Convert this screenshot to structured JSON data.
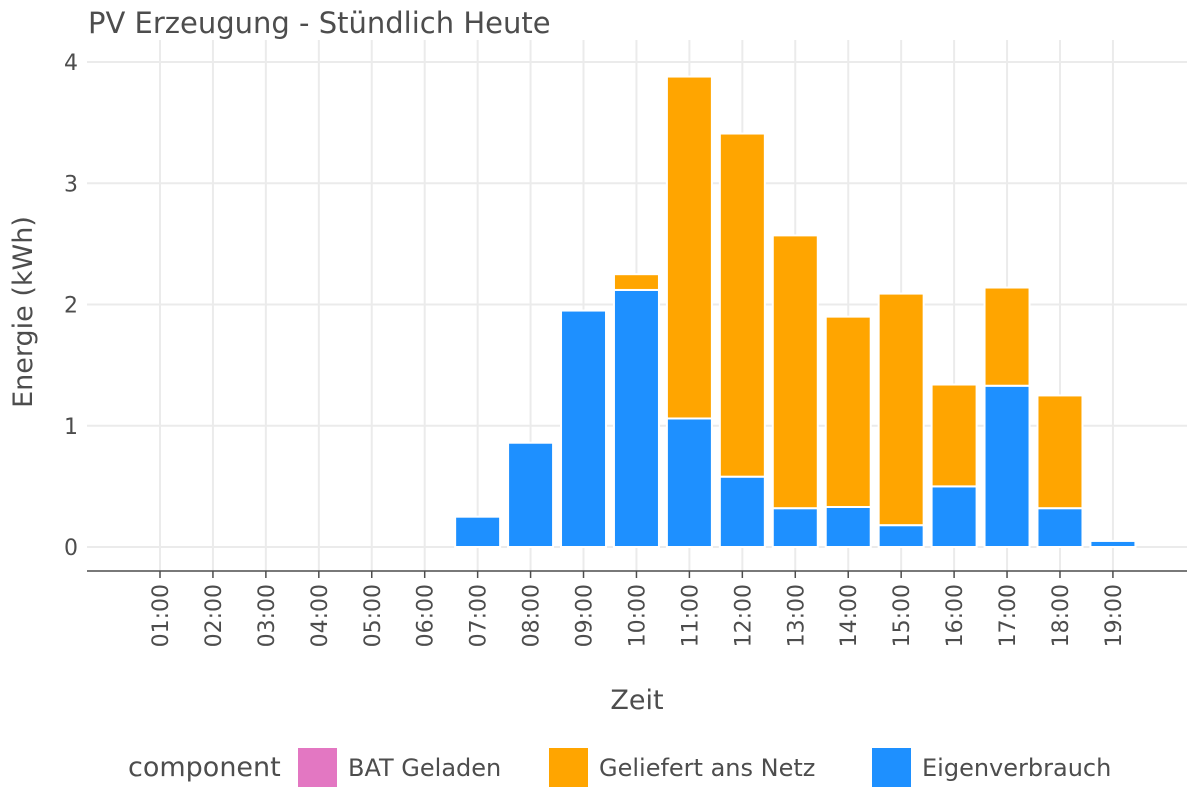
{
  "chart_data": {
    "type": "bar",
    "stacked": true,
    "title": "PV Erzeugung - Stündlich Heute",
    "xlabel": "Zeit",
    "ylabel": "Energie (kWh)",
    "ylim": [
      0,
      4
    ],
    "yticks": [
      "0",
      "1",
      "2",
      "3",
      "4"
    ],
    "grid": true,
    "legend_position": "bottom",
    "legend_title": "component",
    "categories": [
      "01:00",
      "02:00",
      "03:00",
      "04:00",
      "05:00",
      "06:00",
      "07:00",
      "08:00",
      "09:00",
      "10:00",
      "11:00",
      "12:00",
      "13:00",
      "14:00",
      "15:00",
      "16:00",
      "17:00",
      "18:00",
      "19:00"
    ],
    "series": [
      {
        "name": "Eigenverbrauch",
        "color": "#1E90FF",
        "values": [
          0,
          0,
          0,
          0,
          0,
          0,
          0.25,
          0.86,
          1.95,
          2.12,
          1.06,
          0.58,
          0.32,
          0.33,
          0.18,
          0.5,
          1.33,
          0.32,
          0.05
        ]
      },
      {
        "name": "Geliefert ans Netz",
        "color": "#FFA500",
        "values": [
          0,
          0,
          0,
          0,
          0,
          0,
          0,
          0,
          0,
          0.13,
          2.82,
          2.83,
          2.25,
          1.57,
          1.91,
          0.84,
          0.81,
          0.93,
          0
        ]
      },
      {
        "name": "BAT Geladen",
        "color": "#E377C2",
        "values": [
          0,
          0,
          0,
          0,
          0,
          0,
          0,
          0,
          0,
          0,
          0,
          0,
          0,
          0,
          0,
          0,
          0,
          0,
          0
        ]
      }
    ],
    "legend_order": [
      "BAT Geladen",
      "Geliefert ans Netz",
      "Eigenverbrauch"
    ]
  }
}
